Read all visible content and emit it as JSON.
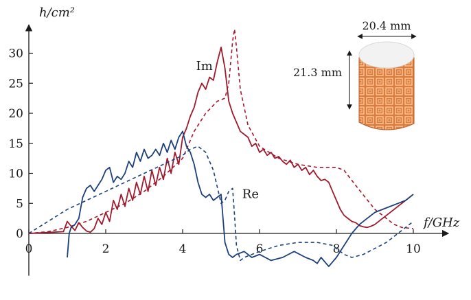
{
  "chart_data": {
    "type": "line",
    "xlabel": "f/GHz",
    "ylabel": "h/cm²",
    "xlim": [
      0,
      10.7
    ],
    "ylim": [
      -7.5,
      34.5
    ],
    "x_ticks": [
      0,
      2,
      4,
      6,
      8,
      10
    ],
    "y_ticks": [
      0,
      5,
      10,
      15,
      20,
      25,
      30
    ],
    "grid": false,
    "legend": "none",
    "colors": {
      "im": "#a0182c",
      "re": "#1c3f7a",
      "axis": "#1a1a1a"
    },
    "series": [
      {
        "name": "Im",
        "style": "solid",
        "color": "#a0182c",
        "x": [
          0.0,
          0.3,
          0.6,
          0.9,
          1.0,
          1.1,
          1.2,
          1.3,
          1.4,
          1.5,
          1.6,
          1.7,
          1.8,
          1.9,
          2.0,
          2.1,
          2.2,
          2.3,
          2.4,
          2.5,
          2.6,
          2.7,
          2.8,
          2.9,
          3.0,
          3.1,
          3.2,
          3.3,
          3.4,
          3.5,
          3.6,
          3.7,
          3.8,
          3.9,
          4.0,
          4.1,
          4.2,
          4.3,
          4.4,
          4.5,
          4.6,
          4.7,
          4.8,
          4.9,
          5.0,
          5.1,
          5.2,
          5.3,
          5.4,
          5.5,
          5.6,
          5.7,
          5.8,
          5.9,
          6.0,
          6.1,
          6.2,
          6.3,
          6.4,
          6.5,
          6.6,
          6.7,
          6.8,
          6.9,
          7.0,
          7.1,
          7.2,
          7.3,
          7.4,
          7.5,
          7.6,
          7.7,
          7.8,
          7.9,
          8.0,
          8.1,
          8.2,
          8.3,
          8.4,
          8.5,
          8.6,
          8.7,
          8.8,
          8.9,
          9.0,
          9.2,
          9.4,
          9.6,
          9.8,
          10.0
        ],
        "y": [
          0.0,
          0.1,
          0.2,
          0.3,
          2.0,
          1.2,
          0.5,
          1.8,
          1.0,
          0.4,
          0.2,
          0.8,
          2.5,
          1.5,
          3.5,
          2.0,
          5.5,
          4.0,
          6.5,
          4.5,
          7.5,
          5.5,
          8.5,
          6.5,
          9.5,
          7.0,
          10.5,
          8.0,
          11.0,
          9.0,
          12.5,
          10.0,
          13.5,
          11.5,
          16.0,
          17.5,
          19.5,
          21.0,
          23.5,
          25.0,
          24.0,
          26.0,
          25.5,
          28.5,
          31.0,
          27.5,
          22.0,
          20.0,
          18.5,
          17.0,
          16.5,
          16.0,
          14.5,
          15.0,
          13.5,
          14.0,
          13.0,
          13.5,
          12.5,
          12.8,
          12.0,
          11.5,
          12.2,
          11.0,
          11.5,
          10.5,
          11.0,
          9.8,
          10.5,
          9.5,
          8.8,
          9.0,
          8.5,
          7.0,
          5.5,
          4.0,
          3.0,
          2.5,
          2.0,
          1.8,
          1.3,
          1.1,
          1.0,
          1.2,
          1.5,
          2.5,
          3.5,
          4.5,
          5.5,
          6.5
        ]
      },
      {
        "name": "",
        "style": "dashed",
        "color": "#a0182c",
        "x": [
          0.0,
          0.5,
          1.0,
          1.5,
          2.0,
          2.5,
          3.0,
          3.5,
          4.0,
          4.3,
          4.6,
          4.9,
          5.1,
          5.2,
          5.3,
          5.35,
          5.4,
          5.5,
          5.7,
          6.0,
          6.5,
          7.0,
          7.5,
          8.0,
          8.2,
          8.5,
          9.0,
          9.5,
          9.7,
          10.0
        ],
        "y": [
          0.0,
          0.3,
          1.0,
          2.0,
          3.5,
          5.0,
          7.0,
          9.5,
          12.5,
          17.0,
          20.0,
          22.0,
          22.5,
          25.0,
          32.0,
          34.0,
          31.0,
          24.0,
          18.0,
          14.5,
          12.5,
          11.5,
          11.0,
          11.0,
          10.5,
          8.0,
          4.0,
          1.5,
          1.0,
          0.8
        ]
      },
      {
        "name": "Re",
        "style": "solid",
        "color": "#1c3f7a",
        "x": [
          1.0,
          1.05,
          1.1,
          1.2,
          1.3,
          1.4,
          1.5,
          1.6,
          1.7,
          1.8,
          1.9,
          2.0,
          2.1,
          2.2,
          2.3,
          2.4,
          2.5,
          2.6,
          2.7,
          2.8,
          2.9,
          3.0,
          3.1,
          3.2,
          3.3,
          3.4,
          3.5,
          3.6,
          3.7,
          3.8,
          3.9,
          4.0,
          4.1,
          4.2,
          4.3,
          4.4,
          4.5,
          4.6,
          4.7,
          4.8,
          4.9,
          5.0,
          5.1,
          5.2,
          5.3,
          5.4,
          5.6,
          5.8,
          6.0,
          6.3,
          6.6,
          6.9,
          7.2,
          7.4,
          7.5,
          7.6,
          7.8,
          8.0,
          8.2,
          8.4,
          8.6,
          8.8,
          9.0,
          9.2,
          9.4,
          9.6,
          9.8,
          10.0
        ],
        "y": [
          -4.0,
          0.0,
          1.0,
          1.5,
          2.5,
          6.0,
          7.5,
          8.0,
          7.0,
          8.0,
          9.0,
          10.5,
          11.0,
          8.5,
          9.5,
          9.0,
          10.0,
          12.0,
          11.0,
          13.5,
          12.0,
          14.0,
          12.5,
          13.0,
          14.0,
          13.0,
          15.0,
          13.5,
          15.5,
          14.0,
          16.0,
          17.0,
          14.5,
          13.5,
          11.5,
          8.5,
          6.5,
          6.0,
          6.5,
          5.5,
          6.0,
          6.5,
          -1.5,
          -3.5,
          -4.0,
          -3.5,
          -3.0,
          -4.0,
          -3.5,
          -4.5,
          -4.0,
          -3.0,
          -4.0,
          -4.5,
          -5.0,
          -4.0,
          -5.5,
          -4.0,
          -2.0,
          0.0,
          1.5,
          2.5,
          3.5,
          4.0,
          4.5,
          5.0,
          5.5,
          6.5
        ]
      },
      {
        "name": "",
        "style": "dashed",
        "color": "#1c3f7a",
        "x": [
          0.0,
          0.5,
          1.0,
          1.5,
          2.0,
          2.5,
          3.0,
          3.5,
          4.0,
          4.2,
          4.4,
          4.6,
          4.8,
          5.0,
          5.1,
          5.2,
          5.3,
          5.35,
          5.4,
          5.5,
          5.6,
          6.0,
          6.5,
          7.0,
          7.5,
          7.9,
          8.2,
          8.4,
          8.7,
          9.0,
          9.3,
          9.6,
          10.0
        ],
        "y": [
          0.0,
          2.0,
          4.0,
          5.5,
          7.0,
          8.5,
          10.0,
          11.5,
          13.0,
          14.0,
          14.5,
          13.5,
          10.5,
          5.0,
          5.5,
          7.0,
          7.5,
          3.0,
          -2.0,
          -4.5,
          -4.0,
          -3.0,
          -2.0,
          -1.5,
          -1.5,
          -2.0,
          -3.5,
          -4.0,
          -3.5,
          -2.5,
          -1.5,
          0.0,
          2.0
        ]
      }
    ],
    "annotations": [
      {
        "text": "Im",
        "x": 4.35,
        "y": 27.2
      },
      {
        "text": "Re",
        "x": 5.55,
        "y": 5.9
      }
    ]
  },
  "inset": {
    "width_label": "20.4 mm",
    "height_label": "21.3 mm",
    "colors": {
      "body": "#e07a3a",
      "pattern": "#f6c79a",
      "top": "#f2f2f2"
    }
  }
}
